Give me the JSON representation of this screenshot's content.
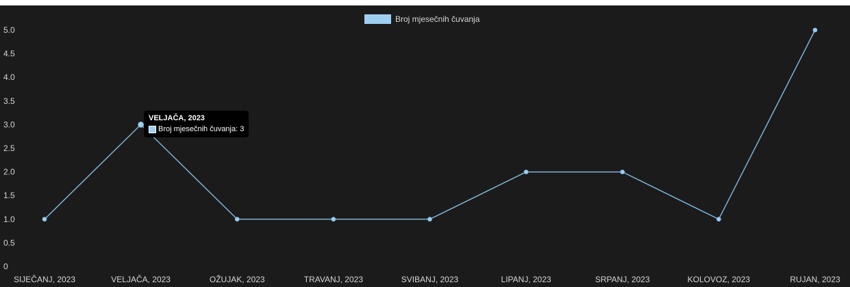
{
  "chart_data": {
    "type": "line",
    "categories": [
      "SIJEČANJ, 2023",
      "VELJAČA, 2023",
      "OŽUJAK, 2023",
      "TRAVANJ, 2023",
      "SVIBANJ, 2023",
      "LIPANJ, 2023",
      "SRPANJ, 2023",
      "KOLOVOZ, 2023",
      "RUJAN, 2023"
    ],
    "series": [
      {
        "name": "Broj mjesečnih čuvanja",
        "values": [
          1,
          3,
          1,
          1,
          1,
          2,
          2,
          1,
          5
        ]
      }
    ],
    "ylim": [
      0,
      5
    ],
    "yticks": [
      "0",
      "0.5",
      "1.0",
      "1.5",
      "2.0",
      "2.5",
      "3.0",
      "3.5",
      "4.0",
      "4.5",
      "5.0"
    ],
    "grid": false,
    "legend": "top-center",
    "title": "",
    "xlabel": "",
    "ylabel": ""
  },
  "colors": {
    "background": "#1b1b1b",
    "line": "#7eb3d6",
    "point": "#9ecff0",
    "text": "#d6d6d6"
  },
  "tooltip": {
    "title": "VELJAČA, 2023",
    "label": "Broj mjesečnih čuvanja: 3"
  }
}
